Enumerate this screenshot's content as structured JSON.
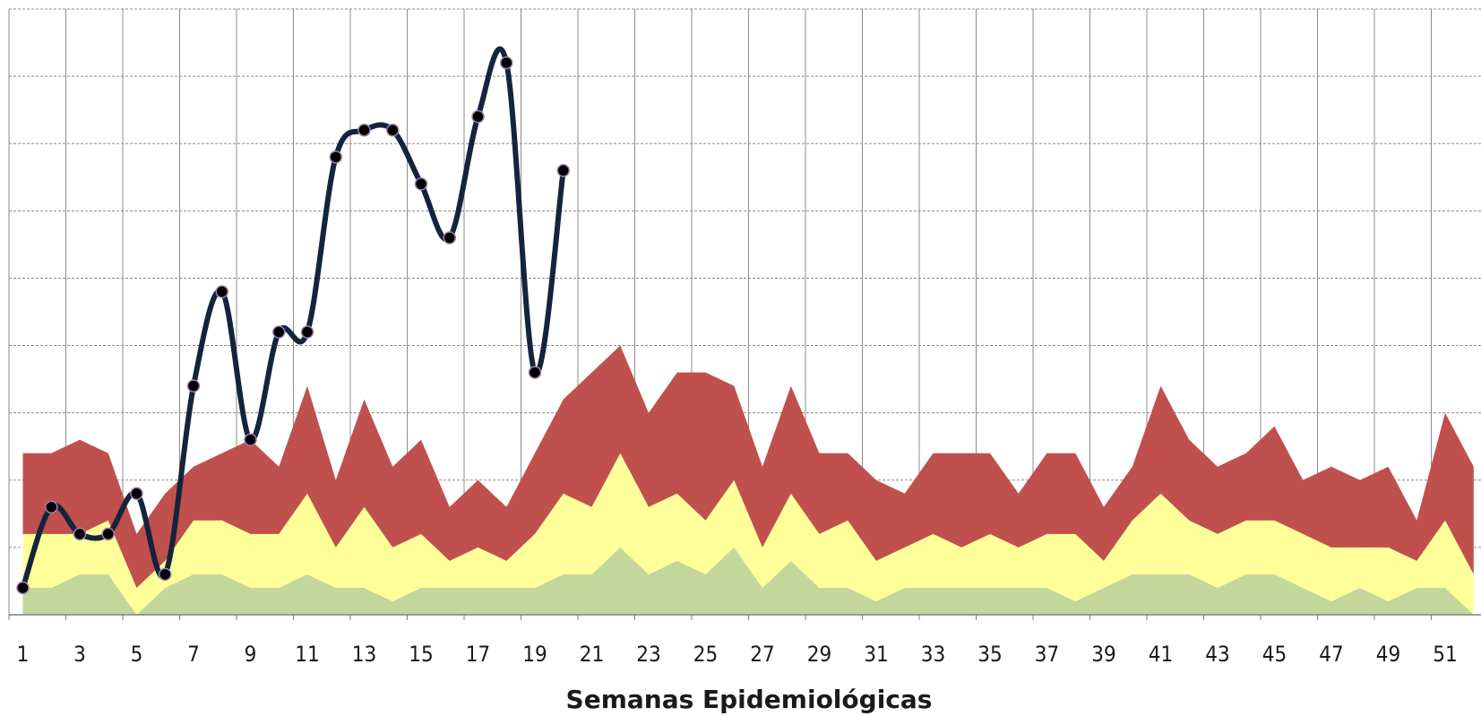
{
  "chart_data": {
    "type": "area",
    "xlabel": "Semanas Epidemiológicas",
    "ylabel": "",
    "xlim": [
      1,
      52
    ],
    "ylim": [
      0,
      9
    ],
    "grid": true,
    "x_ticks": [
      1,
      3,
      5,
      7,
      9,
      11,
      13,
      15,
      17,
      19,
      21,
      23,
      25,
      27,
      29,
      31,
      33,
      35,
      37,
      39,
      41,
      43,
      45,
      47,
      49,
      51
    ],
    "x_tick_labels": [
      "1",
      "3",
      "5",
      "7",
      "9",
      "11",
      "13",
      "15",
      "17",
      "19",
      "21",
      "23",
      "25",
      "27",
      "29",
      "31",
      "33",
      "35",
      "37",
      "39",
      "41",
      "43",
      "45",
      "47",
      "49",
      "51"
    ],
    "weeks": [
      1,
      2,
      3,
      4,
      5,
      6,
      7,
      8,
      9,
      10,
      11,
      12,
      13,
      14,
      15,
      16,
      17,
      18,
      19,
      20,
      21,
      22,
      23,
      24,
      25,
      26,
      27,
      28,
      29,
      30,
      31,
      32,
      33,
      34,
      35,
      36,
      37,
      38,
      39,
      40,
      41,
      42,
      43,
      44,
      45,
      46,
      47,
      48,
      49,
      50,
      51,
      52
    ],
    "bands": [
      {
        "color": "#c4d79b",
        "values": [
          0.4,
          0.4,
          0.6,
          0.6,
          0.0,
          0.4,
          0.6,
          0.6,
          0.4,
          0.4,
          0.6,
          0.4,
          0.4,
          0.2,
          0.4,
          0.4,
          0.4,
          0.4,
          0.4,
          0.6,
          0.6,
          1.0,
          0.6,
          0.8,
          0.6,
          1.0,
          0.4,
          0.8,
          0.4,
          0.4,
          0.2,
          0.4,
          0.4,
          0.4,
          0.4,
          0.4,
          0.4,
          0.2,
          0.4,
          0.6,
          0.6,
          0.6,
          0.4,
          0.6,
          0.6,
          0.4,
          0.2,
          0.4,
          0.2,
          0.4,
          0.4,
          0.0
        ]
      },
      {
        "color": "#ffff99",
        "values": [
          0.8,
          0.8,
          0.6,
          0.8,
          0.4,
          0.4,
          0.8,
          0.8,
          0.8,
          0.8,
          1.2,
          0.6,
          1.2,
          0.8,
          0.8,
          0.4,
          0.6,
          0.4,
          0.8,
          1.2,
          1.0,
          1.4,
          1.0,
          1.0,
          0.8,
          1.0,
          0.6,
          1.0,
          0.8,
          1.0,
          0.6,
          0.6,
          0.8,
          0.6,
          0.8,
          0.6,
          0.8,
          1.0,
          0.4,
          0.8,
          1.2,
          0.8,
          0.8,
          0.8,
          0.8,
          0.8,
          0.8,
          0.6,
          0.8,
          0.4,
          1.0,
          0.6
        ]
      },
      {
        "color": "#c0504d",
        "values": [
          1.2,
          1.2,
          1.4,
          1.0,
          0.8,
          1.0,
          0.8,
          1.0,
          1.4,
          1.0,
          1.6,
          1.0,
          1.6,
          1.2,
          1.4,
          0.8,
          1.0,
          0.8,
          1.2,
          1.4,
          2.0,
          1.6,
          1.4,
          1.8,
          2.2,
          1.4,
          1.2,
          1.6,
          1.2,
          1.0,
          1.2,
          0.8,
          1.2,
          1.4,
          1.2,
          0.8,
          1.2,
          1.2,
          0.8,
          0.8,
          1.6,
          1.2,
          1.0,
          1.0,
          1.4,
          0.8,
          1.2,
          1.0,
          1.2,
          0.6,
          1.6,
          1.6
        ]
      }
    ],
    "series": [
      {
        "color": "#14243d",
        "marker_color": "#000000",
        "values": [
          0.4,
          1.6,
          1.2,
          1.2,
          1.8,
          0.6,
          3.4,
          4.8,
          2.6,
          4.2,
          4.2,
          6.8,
          7.2,
          7.2,
          6.4,
          5.6,
          7.4,
          8.2,
          3.6,
          6.6
        ]
      }
    ]
  }
}
